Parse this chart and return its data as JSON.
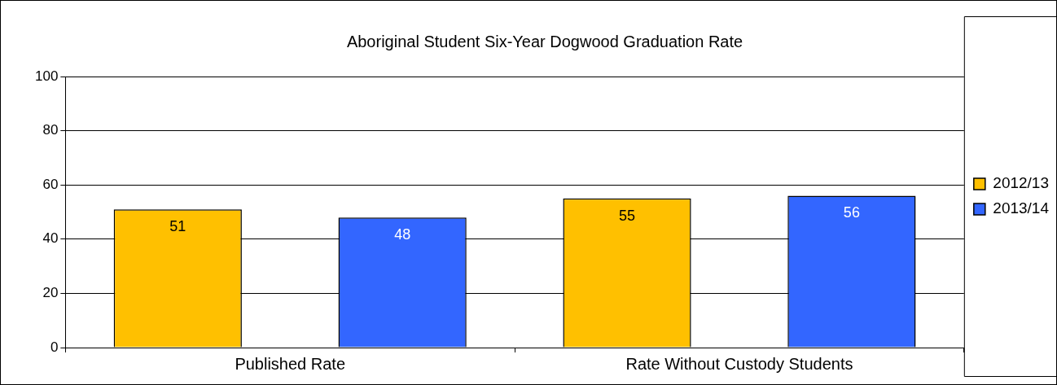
{
  "chart_data": {
    "type": "bar",
    "title": "Aboriginal Student Six-Year Dogwood Graduation Rate",
    "categories": [
      "Published Rate",
      "Rate Without Custody Students"
    ],
    "series": [
      {
        "name": "2012/13",
        "color": "#ffc000",
        "values": [
          51,
          55
        ]
      },
      {
        "name": "2013/14",
        "color": "#3366ff",
        "values": [
          48,
          56
        ]
      }
    ],
    "ylim": [
      0,
      100
    ],
    "yticks": [
      0,
      20,
      40,
      60,
      80,
      100
    ],
    "grid": "y",
    "legend": "right",
    "data_labels": true
  }
}
